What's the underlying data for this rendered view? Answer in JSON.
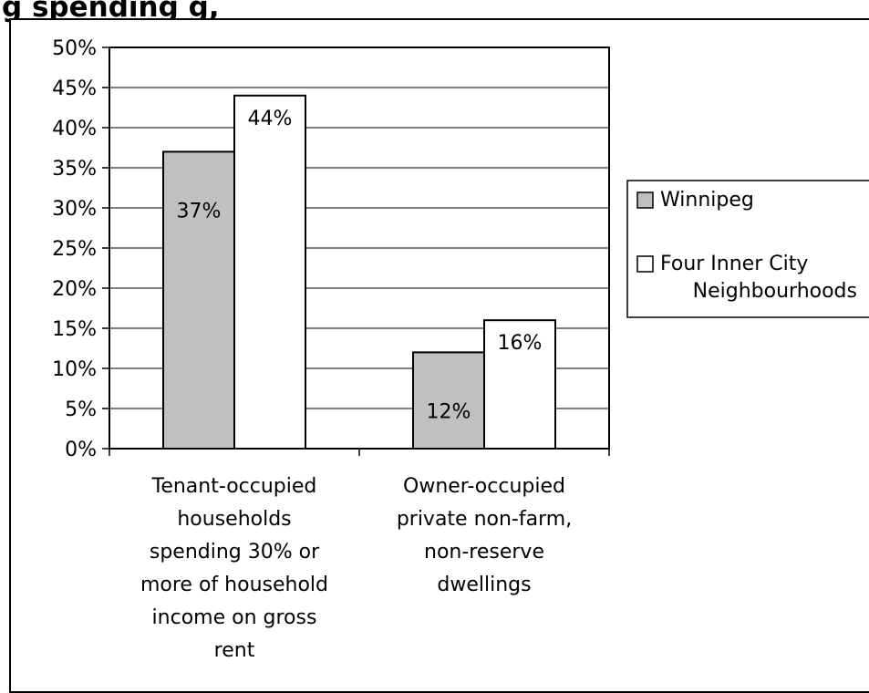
{
  "title_fragment": "g                                        spending           g,",
  "chart_data": {
    "type": "bar",
    "categories": [
      "Tenant-occupied households spending 30% or more of household income on gross rent",
      "Owner-occupied private non-farm, non-reserve dwellings"
    ],
    "category_lines": [
      [
        "Tenant-occupied",
        "households",
        "spending 30% or",
        "more of household",
        "income on gross",
        "rent"
      ],
      [
        "Owner-occupied",
        "private non-farm,",
        "non-reserve",
        "dwellings"
      ]
    ],
    "series": [
      {
        "name": "Winnipeg",
        "values": [
          37,
          12
        ],
        "labels": [
          "37%",
          "12%"
        ],
        "color": "#c0c0c0"
      },
      {
        "name": "Four Inner City Neighbourhoods",
        "values": [
          44,
          16
        ],
        "labels": [
          "44%",
          "16%"
        ],
        "color": "#ffffff"
      }
    ],
    "legend_lines": [
      [
        "Winnipeg"
      ],
      [
        "Four Inner City",
        "Neighbourhoods"
      ]
    ],
    "yticks": [
      "0%",
      "5%",
      "10%",
      "15%",
      "20%",
      "25%",
      "30%",
      "35%",
      "40%",
      "45%",
      "50%"
    ],
    "ylim": [
      0,
      50
    ],
    "grid": true,
    "legend_position": "right"
  }
}
